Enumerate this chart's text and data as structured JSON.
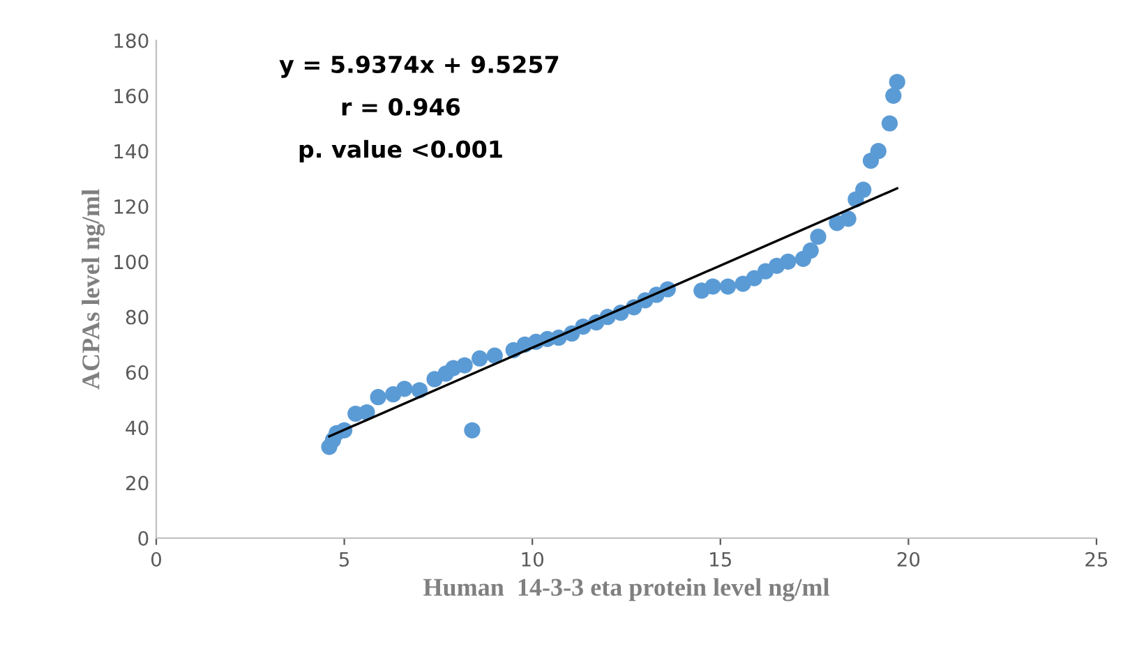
{
  "chart_data": {
    "type": "scatter",
    "xlabel": "Human  14-3-3 eta protein level ng/ml",
    "ylabel": "ACPAs level ng/ml",
    "annotations": [
      "y = 5.9374x + 9.5257",
      "r = 0.946",
      "p. value <0.001"
    ],
    "xlim": [
      0,
      25
    ],
    "ylim": [
      0,
      180
    ],
    "xticks": [
      0,
      5,
      10,
      15,
      20,
      25
    ],
    "yticks": [
      0,
      20,
      40,
      60,
      80,
      100,
      120,
      140,
      160,
      180
    ],
    "grid": false,
    "series": [
      {
        "marker": "circle",
        "color": "#5b9bd5",
        "x": [
          4.6,
          4.7,
          4.8,
          5.0,
          5.3,
          5.6,
          5.9,
          6.3,
          6.6,
          7.0,
          7.4,
          7.7,
          7.9,
          8.2,
          8.4,
          8.6,
          9.0,
          9.5,
          9.8,
          10.1,
          10.4,
          10.7,
          11.05,
          11.35,
          11.7,
          12.0,
          12.35,
          12.7,
          13.0,
          13.3,
          13.6,
          14.5,
          14.8,
          15.2,
          15.6,
          15.9,
          16.2,
          16.5,
          16.8,
          17.2,
          17.4,
          17.6,
          18.1,
          18.4,
          18.6,
          18.8,
          19.0,
          19.2,
          19.5,
          19.6,
          19.7
        ],
        "values": [
          33,
          35.5,
          38,
          39,
          45,
          45.5,
          51,
          52,
          54,
          53.5,
          57.5,
          59.5,
          61.5,
          62.5,
          39,
          65,
          66,
          68,
          70,
          71,
          72,
          72.5,
          74,
          76.5,
          78,
          80,
          81.5,
          83.5,
          86,
          88,
          90,
          89.5,
          91,
          91,
          92,
          94,
          96.5,
          98.5,
          100,
          101,
          104,
          109,
          114,
          115.5,
          122.5,
          126,
          136.5,
          140,
          150,
          160,
          165
        ]
      },
      {
        "type": "line",
        "color": "#000000",
        "x": [
          4.6,
          19.7
        ],
        "values": [
          36.8,
          126.5
        ]
      }
    ]
  }
}
